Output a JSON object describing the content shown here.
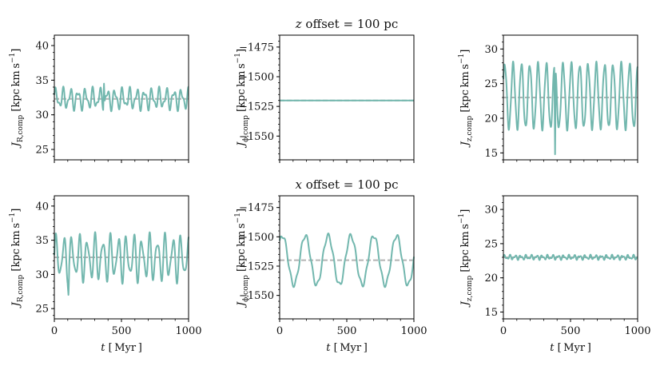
{
  "chart_data": {
    "type": "line",
    "colors": {
      "line": "#72b7ae",
      "reference": "#b3b3b3",
      "axes": "#000000"
    },
    "row_titles": [
      "z offset = 100 pc",
      "x offset = 100 pc"
    ],
    "xlabel": "t [Myr]",
    "xlim": [
      0,
      1000
    ],
    "xticks": [
      0,
      500,
      1000
    ],
    "panels": [
      {
        "id": "JR_z",
        "ylabel": "J_R,comp [kpc km s^-1]",
        "ylim": [
          23.5,
          41.5
        ],
        "yticks": [
          25,
          30,
          35,
          40
        ],
        "reference": 32.3,
        "series": [
          {
            "name": "oscillation",
            "baseline": 32.3,
            "amp": 1.2,
            "period": 55,
            "phase": 0.3,
            "amp2": 0.6,
            "period2": 31,
            "spikes": [
              [
                370,
                34.5
              ]
            ]
          }
        ]
      },
      {
        "id": "Jphi_z",
        "ylabel": "J_phi,comp [kpc km s^-1]",
        "ylim": [
          -1570,
          -1465
        ],
        "yticks": [
          -1475,
          -1500,
          -1525,
          -1550
        ],
        "reference": -1520,
        "series": [
          {
            "name": "flat",
            "baseline": -1520,
            "amp": 0,
            "period": 100,
            "phase": 0,
            "amp2": 0,
            "period2": 100,
            "spikes": []
          }
        ]
      },
      {
        "id": "Jz_z",
        "ylabel": "J_z,comp [kpc km s^-1]",
        "ylim": [
          14,
          32
        ],
        "yticks": [
          15,
          20,
          25,
          30
        ],
        "reference": 23,
        "series": [
          {
            "name": "oscillation",
            "baseline": 23.2,
            "amp": 4.6,
            "period": 62,
            "phase": 0.5,
            "amp2": 0.4,
            "period2": 23,
            "spikes": [
              [
                385,
                14.8
              ]
            ]
          }
        ]
      },
      {
        "id": "JR_x",
        "ylabel": "J_R,comp [kpc km s^-1]",
        "ylim": [
          23.5,
          41.5
        ],
        "yticks": [
          25,
          30,
          35,
          40
        ],
        "reference": 32.5,
        "series": [
          {
            "name": "oscillation",
            "baseline": 32.4,
            "amp": 2.8,
            "period": 58,
            "phase": 0.1,
            "amp2": 1.0,
            "period2": 37,
            "spikes": [
              [
                105,
                27.0
              ]
            ]
          }
        ]
      },
      {
        "id": "Jphi_x",
        "ylabel": "J_phi,comp [kpc km s^-1]",
        "ylim": [
          -1570,
          -1465
        ],
        "yticks": [
          -1475,
          -1500,
          -1525,
          -1550
        ],
        "reference": -1520,
        "series": [
          {
            "name": "oscillation",
            "baseline": -1520,
            "amp": 21,
            "period": 170,
            "phase": 0.8,
            "amp2": 2,
            "period2": 40,
            "spikes": []
          }
        ]
      },
      {
        "id": "Jz_x",
        "ylabel": "J_z,comp [kpc km s^-1]",
        "ylim": [
          14,
          32
        ],
        "yticks": [
          15,
          20,
          25,
          30
        ],
        "reference": 23,
        "series": [
          {
            "name": "oscillation",
            "baseline": 23.0,
            "amp": 0.25,
            "period": 40,
            "phase": 0.2,
            "amp2": 0.15,
            "period2": 23,
            "spikes": []
          }
        ]
      }
    ]
  }
}
